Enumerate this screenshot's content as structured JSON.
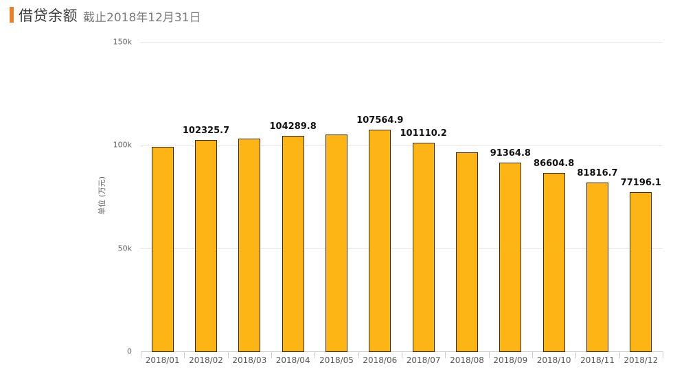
{
  "header": {
    "title": "借贷余额",
    "subtitle": "截止2018年12月31日",
    "accent_color": "#e8822a"
  },
  "chart_data": {
    "type": "bar",
    "title": "借贷余额",
    "subtitle": "截止2018年12月31日",
    "xlabel": "",
    "ylabel": "单位 (万元)",
    "ylim": [
      0,
      150000
    ],
    "yticks": [
      {
        "value": 0,
        "label": "0"
      },
      {
        "value": 50000,
        "label": "50k"
      },
      {
        "value": 100000,
        "label": "100k"
      },
      {
        "value": 150000,
        "label": "150k"
      }
    ],
    "grid": true,
    "legend": null,
    "bar_color": "#fdb515",
    "bar_border_color": "#3d2a00",
    "categories": [
      "2018/01",
      "2018/02",
      "2018/03",
      "2018/04",
      "2018/05",
      "2018/06",
      "2018/07",
      "2018/08",
      "2018/09",
      "2018/10",
      "2018/11",
      "2018/12"
    ],
    "values": [
      99000,
      102325.7,
      103000,
      104289.8,
      105000,
      107564.9,
      101110.2,
      96300,
      91364.8,
      86604.8,
      81816.7,
      77196.1
    ],
    "data_labels": [
      null,
      "102325.7",
      null,
      "104289.8",
      null,
      "107564.9",
      "101110.2",
      null,
      "91364.8",
      "86604.8",
      "81816.7",
      "77196.1"
    ]
  }
}
